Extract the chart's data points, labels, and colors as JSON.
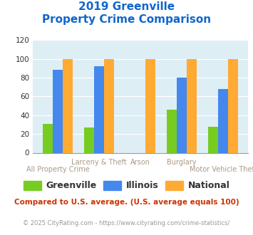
{
  "title_line1": "2019 Greenville",
  "title_line2": "Property Crime Comparison",
  "categories": [
    "All Property Crime",
    "Larceny & Theft",
    "Arson",
    "Burglary",
    "Motor Vehicle Theft"
  ],
  "greenville": [
    31,
    27,
    0,
    46,
    28
  ],
  "illinois": [
    88,
    92,
    0,
    80,
    68
  ],
  "national": [
    100,
    100,
    100,
    100,
    100
  ],
  "greenville_color": "#77cc22",
  "illinois_color": "#4488ee",
  "national_color": "#ffaa33",
  "background_color": "#ddeef5",
  "ylim": [
    0,
    120
  ],
  "yticks": [
    0,
    20,
    40,
    60,
    80,
    100,
    120
  ],
  "legend_labels": [
    "Greenville",
    "Illinois",
    "National"
  ],
  "title_color": "#1166cc",
  "label_color": "#aa9988",
  "footer_text": "Compared to U.S. average. (U.S. average equals 100)",
  "copyright_text": "© 2025 CityRating.com - https://www.cityrating.com/crime-statistics/",
  "footer_color": "#cc3300",
  "copyright_color": "#999999"
}
